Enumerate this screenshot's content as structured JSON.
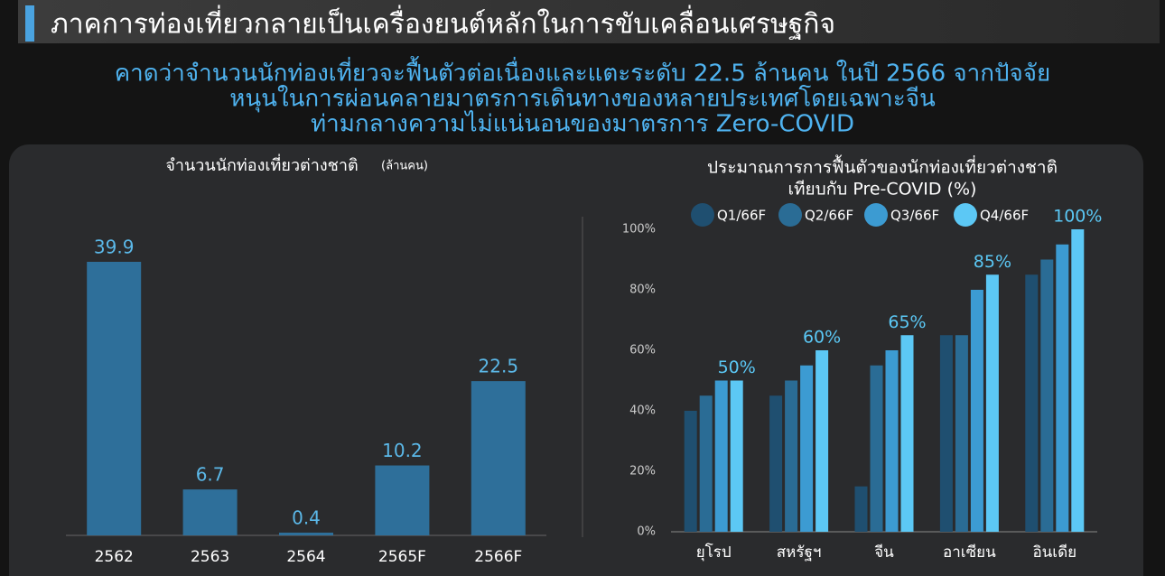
{
  "header": {
    "title": "ภาคการท่องเที่ยวกลายเป็นเครื่องยนต์หลักในการขับเคลื่อนเศรษฐกิจ",
    "subtitle": [
      "คาดว่าจำนวนนักท่องเที่ยวจะฟื้นตัวต่อเนื่องและแตะระดับ 22.5 ล้านคน ในปี 2566 จากปัจจัย",
      "หนุนในการผ่อนคลายมาตรการเดินทางของหลายประเทศโดยเฉพาะจีน",
      "ท่ามกลางความไม่แน่นอนของมาตรการ Zero-COVID"
    ]
  },
  "chart_data": [
    {
      "type": "bar",
      "title": "จำนวนนักท่องเที่ยวต่างชาติ",
      "unit": "(ล้านคน)",
      "categories": [
        "2562",
        "2563",
        "2564",
        "2565F",
        "2566F"
      ],
      "values": [
        39.9,
        6.7,
        0.4,
        10.2,
        22.5
      ],
      "color": "#2e6f9a"
    },
    {
      "type": "bar",
      "title": [
        "ประมาณการการฟื้นตัวของนักท่องเที่ยวต่างชาติ",
        "เทียบกับ Pre-COVID (%)"
      ],
      "categories": [
        "ยุโรป",
        "สหรัฐฯ",
        "จีน",
        "อาเซียน",
        "อินเดีย"
      ],
      "series": [
        {
          "name": "Q1/66F",
          "color": "#1f4f70",
          "values": [
            40,
            45,
            15,
            65,
            85
          ]
        },
        {
          "name": "Q2/66F",
          "color": "#2a6c95",
          "values": [
            45,
            50,
            55,
            65,
            90
          ]
        },
        {
          "name": "Q3/66F",
          "color": "#3c9bd2",
          "values": [
            50,
            55,
            60,
            80,
            95
          ]
        },
        {
          "name": "Q4/66F",
          "color": "#5cc8f5",
          "values": [
            50,
            60,
            65,
            85,
            100
          ],
          "value_labels": [
            "50%",
            "60%",
            "65%",
            "85%",
            "100%"
          ]
        }
      ],
      "ylim": [
        0,
        100
      ],
      "yticks": [
        {
          "value": 0,
          "label": "0%"
        },
        {
          "value": 20,
          "label": "20%"
        },
        {
          "value": 40,
          "label": "40%"
        },
        {
          "value": 60,
          "label": "60%"
        },
        {
          "value": 80,
          "label": "80%"
        },
        {
          "value": 100,
          "label": "100%"
        }
      ],
      "grid": false
    }
  ]
}
